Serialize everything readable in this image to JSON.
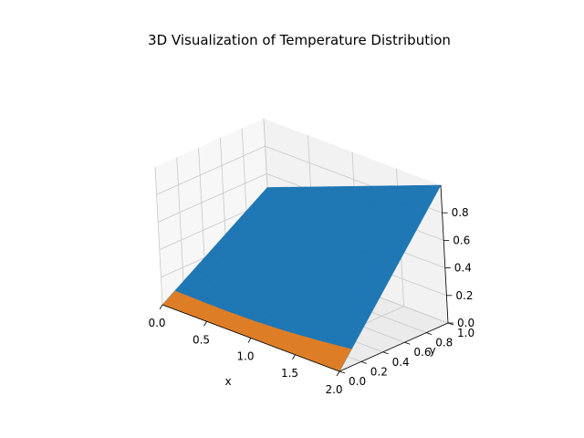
{
  "chart_data": {
    "type": "surface3d",
    "title": "3D Visualization of Temperature Distribution",
    "xlabel": "x",
    "ylabel": "y",
    "zlabel": "",
    "xlim": [
      0,
      2
    ],
    "ylim": [
      0,
      1
    ],
    "zlim": [
      0,
      1
    ],
    "xticks": [
      "0.0",
      "0.5",
      "1.0",
      "1.5",
      "2.0"
    ],
    "yticks": [
      "0.0",
      "0.2",
      "0.4",
      "0.6",
      "0.8",
      "1.0"
    ],
    "zticks": [
      "0.0",
      "0.2",
      "0.4",
      "0.6",
      "0.8"
    ],
    "grid": true,
    "surface": {
      "x_range": [
        0,
        2
      ],
      "y_range": [
        0,
        1
      ],
      "corners": {
        "x0_y0": 0.0,
        "x2_y0": 0.0,
        "x0_y1": 0.5,
        "x2_y1": 1.0
      }
    },
    "colors": {
      "top": "#1f77b4",
      "bottom": "#ff7f0e",
      "pane_back": "#f2f2f2",
      "pane_floor": "#ebebeb",
      "grid": "#c8c8c8"
    }
  }
}
